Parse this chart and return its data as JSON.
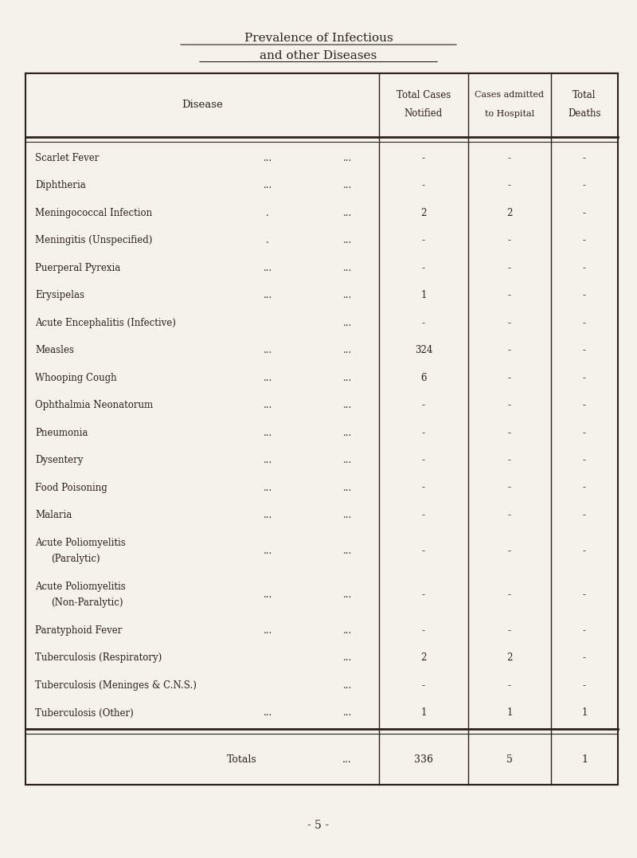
{
  "title_line1": "Prevalence of Infectious",
  "title_line2": "and other Diseases",
  "page_number": "- 5 -",
  "rows": [
    {
      "disease": "Scarlet Fever",
      "dots1": "...",
      "dots2": "...",
      "notified": "-",
      "hospital": "-",
      "deaths": "-"
    },
    {
      "disease": "Diphtheria",
      "dots1": "...",
      "dots2": "...",
      "notified": "-",
      "hospital": "-",
      "deaths": "-"
    },
    {
      "disease": "Meningococcal Infection",
      "dots1": ".",
      "dots2": "...",
      "notified": "2",
      "hospital": "2",
      "deaths": "-"
    },
    {
      "disease": "Meningitis (Unspecified)",
      "dots1": ".",
      "dots2": "...",
      "notified": "-",
      "hospital": "-",
      "deaths": "-"
    },
    {
      "disease": "Puerperal Pyrexia",
      "dots1": "...",
      "dots2": "...",
      "notified": "-",
      "hospital": "-",
      "deaths": "-"
    },
    {
      "disease": "Erysipelas",
      "dots1": "...",
      "dots2": "...",
      "notified": "1",
      "hospital": "-",
      "deaths": "-"
    },
    {
      "disease": "Acute Encephalitis (Infective)",
      "dots1": "",
      "dots2": "...",
      "notified": "-",
      "hospital": "-",
      "deaths": "-"
    },
    {
      "disease": "Measles",
      "dots1": "...",
      "dots2": "...",
      "notified": "324",
      "hospital": "-",
      "deaths": "-"
    },
    {
      "disease": "Whooping Cough",
      "dots1": "...",
      "dots2": "...",
      "notified": "6",
      "hospital": "-",
      "deaths": "-"
    },
    {
      "disease": "Ophthalmia Neonatorum",
      "dots1": "...",
      "dots2": "...",
      "notified": "-",
      "hospital": "-",
      "deaths": "-"
    },
    {
      "disease": "Pneumonia",
      "dots1": "...",
      "dots2": "...",
      "notified": "-",
      "hospital": "-",
      "deaths": "-"
    },
    {
      "disease": "Dysentery",
      "dots1": "...",
      "dots2": "...",
      "notified": "-",
      "hospital": "-",
      "deaths": "-"
    },
    {
      "disease": "Food Poisoning",
      "dots1": "...",
      "dots2": "...",
      "notified": "-",
      "hospital": "-",
      "deaths": "-"
    },
    {
      "disease": "Malaria",
      "dots1": "...",
      "dots2": "...",
      "notified": "-",
      "hospital": "-",
      "deaths": "-"
    },
    {
      "disease": "Acute Poliomyelitis|(Paralytic)",
      "dots1": "...",
      "dots2": "...",
      "notified": "-",
      "hospital": "-",
      "deaths": "-"
    },
    {
      "disease": "Acute Poliomyelitis|(Non-Paralytic)",
      "dots1": "...",
      "dots2": "...",
      "notified": "-",
      "hospital": "-",
      "deaths": "-"
    },
    {
      "disease": "Paratyphoid Fever",
      "dots1": "...",
      "dots2": "...",
      "notified": "-",
      "hospital": "-",
      "deaths": "-"
    },
    {
      "disease": "Tuberculosis (Respiratory)",
      "dots1": "",
      "dots2": "...",
      "notified": "2",
      "hospital": "2",
      "deaths": "-"
    },
    {
      "disease": "Tuberculosis (Meninges & C.N.S.)",
      "dots1": "",
      "dots2": "...",
      "notified": "-",
      "hospital": "-",
      "deaths": "-"
    },
    {
      "disease": "Tuberculosis (Other)",
      "dots1": "...",
      "dots2": "...",
      "notified": "1",
      "hospital": "1",
      "deaths": "1"
    }
  ],
  "totals": {
    "label": "Totals",
    "dots": "...",
    "notified": "336",
    "hospital": "5",
    "deaths": "1"
  },
  "bg_color": "#f5f2ec",
  "table_bg": "#f5f2ec",
  "text_color": "#2a2118",
  "font_family": "serif"
}
